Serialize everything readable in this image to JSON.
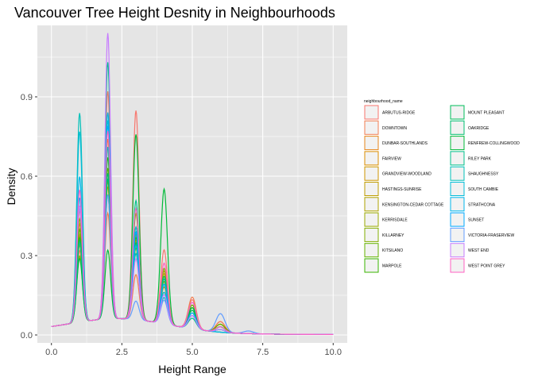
{
  "chart_data": {
    "type": "line",
    "title": "Vancouver Tree Height Desnity in Neighbourhoods",
    "xlabel": "Height Range",
    "ylabel": "Density",
    "xlim": [
      -0.5,
      10.5
    ],
    "ylim": [
      -0.03,
      1.17
    ],
    "x_ticks": [
      0,
      2.5,
      5,
      7.5,
      10
    ],
    "x_tick_labels": [
      "0.0",
      "2.5",
      "5.0",
      "7.5",
      "10.0"
    ],
    "y_ticks": [
      0,
      0.3,
      0.6,
      0.9
    ],
    "y_tick_labels": [
      "0.0",
      "0.3",
      "0.6",
      "0.9"
    ],
    "grid": true,
    "background": "#e5e5e5",
    "legend": {
      "title": "neighbourhood_name",
      "position": "right",
      "columns": 2
    },
    "series": [
      {
        "name": "ARBUTUS-RIDGE",
        "color": "#F8766D",
        "values": [
          0.01,
          0.47,
          0.91,
          0.84,
          0.33,
          0.16,
          0.09,
          0.05,
          0.02
        ]
      },
      {
        "name": "DOWNTOWN",
        "color": "#F17D51",
        "values": [
          0.01,
          0.32,
          0.45,
          0.22,
          0.17,
          0.17,
          0.09,
          0.04,
          0.02
        ]
      },
      {
        "name": "DUNBAR-SOUTHLANDS",
        "color": "#E7861B",
        "values": [
          0.01,
          0.42,
          0.73,
          0.35,
          0.2,
          0.14,
          0.08,
          0.05,
          0.02
        ]
      },
      {
        "name": "FAIRVIEW",
        "color": "#DB8E00",
        "values": [
          0.01,
          0.38,
          0.6,
          0.3,
          0.19,
          0.14,
          0.08,
          0.04,
          0.02
        ]
      },
      {
        "name": "GRANDVIEW-WOODLAND",
        "color": "#CD9600",
        "values": [
          0.01,
          0.4,
          0.58,
          0.38,
          0.23,
          0.12,
          0.07,
          0.03,
          0.01
        ]
      },
      {
        "name": "HASTINGS-SUNRISE",
        "color": "#BE9C00",
        "values": [
          0.01,
          0.36,
          0.55,
          0.4,
          0.24,
          0.11,
          0.06,
          0.03,
          0.01
        ]
      },
      {
        "name": "KENSINGTON-CEDAR COTTAGE",
        "color": "#AEA200",
        "values": [
          0.01,
          0.34,
          0.57,
          0.37,
          0.25,
          0.12,
          0.06,
          0.03,
          0.01
        ]
      },
      {
        "name": "KERRISDALE",
        "color": "#9AA800",
        "values": [
          0.01,
          0.44,
          0.7,
          0.33,
          0.19,
          0.13,
          0.08,
          0.04,
          0.02
        ]
      },
      {
        "name": "KILLARNEY",
        "color": "#82AD00",
        "values": [
          0.01,
          0.3,
          0.52,
          0.45,
          0.26,
          0.1,
          0.06,
          0.02,
          0.01
        ]
      },
      {
        "name": "KITSILANO",
        "color": "#64B200",
        "values": [
          0.01,
          0.4,
          0.62,
          0.32,
          0.21,
          0.14,
          0.08,
          0.04,
          0.02
        ]
      },
      {
        "name": "MARPOLE",
        "color": "#39B600",
        "values": [
          0.01,
          0.37,
          0.66,
          0.36,
          0.22,
          0.12,
          0.07,
          0.03,
          0.01
        ]
      },
      {
        "name": "MOUNT PLEASANT",
        "color": "#00BC59",
        "values": [
          0.01,
          0.36,
          0.58,
          0.34,
          0.23,
          0.13,
          0.07,
          0.04,
          0.01
        ]
      },
      {
        "name": "OAKRIDGE",
        "color": "#00BE70",
        "values": [
          0.01,
          0.35,
          0.6,
          0.38,
          0.22,
          0.12,
          0.07,
          0.03,
          0.01
        ]
      },
      {
        "name": "RENFREW-COLLINGWOOD",
        "color": "#00BA38",
        "values": [
          0.01,
          0.29,
          0.31,
          0.75,
          0.56,
          0.13,
          0.05,
          0.02,
          0.01
        ]
      },
      {
        "name": "RILEY PARK",
        "color": "#00C08B",
        "values": [
          0.01,
          0.35,
          1.02,
          0.5,
          0.22,
          0.09,
          0.04,
          0.02,
          0.01
        ]
      },
      {
        "name": "SHAUGHNESSY",
        "color": "#00C0B8",
        "values": [
          0.01,
          0.84,
          0.7,
          0.3,
          0.15,
          0.1,
          0.06,
          0.03,
          0.02
        ]
      },
      {
        "name": "SOUTH CAMBIE",
        "color": "#00BCD8",
        "values": [
          0.01,
          0.77,
          0.8,
          0.33,
          0.17,
          0.11,
          0.06,
          0.03,
          0.01
        ]
      },
      {
        "name": "STRATHCONA",
        "color": "#00B6EB",
        "values": [
          0.01,
          0.6,
          0.83,
          0.4,
          0.2,
          0.1,
          0.05,
          0.03,
          0.01
        ]
      },
      {
        "name": "SUNSET",
        "color": "#00A9FF",
        "values": [
          0.01,
          0.52,
          0.78,
          0.38,
          0.2,
          0.11,
          0.06,
          0.03,
          0.01
        ]
      },
      {
        "name": "VICTORIA-FRASERVIEW",
        "color": "#619CFF",
        "values": [
          0.01,
          0.48,
          0.52,
          0.12,
          0.14,
          0.15,
          0.12,
          0.06,
          0.03
        ]
      },
      {
        "name": "WEST END",
        "color": "#C77CFF",
        "values": [
          0.01,
          0.49,
          1.13,
          0.28,
          0.16,
          0.1,
          0.06,
          0.03,
          0.01
        ]
      },
      {
        "name": "WEST POINT GREY",
        "color": "#FF61C3",
        "values": [
          0.01,
          0.55,
          0.76,
          0.47,
          0.28,
          0.15,
          0.07,
          0.03,
          0.01
        ]
      }
    ],
    "peak_x": [
      0,
      1,
      2,
      3,
      4,
      5,
      6,
      7,
      8
    ]
  }
}
